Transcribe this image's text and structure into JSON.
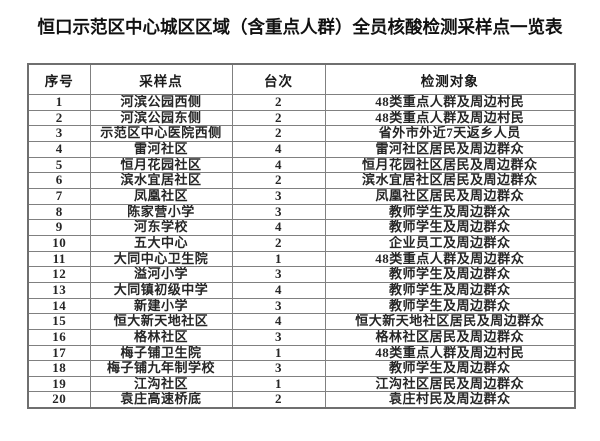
{
  "title": "恒口示范区中心城区区域（含重点人群）全员核酸检测采样点一览表",
  "table": {
    "columns": [
      "序号",
      "采样点",
      "台次",
      "检测对象"
    ],
    "rows": [
      [
        "1",
        "河滨公园西侧",
        "2",
        "48类重点人群及周边村民"
      ],
      [
        "2",
        "河滨公园东侧",
        "2",
        "48类重点人群及周边村民"
      ],
      [
        "3",
        "示范区中心医院西侧",
        "2",
        "省外市外近7天返乡人员"
      ],
      [
        "4",
        "雷河社区",
        "4",
        "雷河社区居民及周边群众"
      ],
      [
        "5",
        "恒月花园社区",
        "4",
        "恒月花园社区居民及周边群众"
      ],
      [
        "6",
        "滨水宜居社区",
        "2",
        "滨水宜居社区居民及周边群众"
      ],
      [
        "7",
        "凤凰社区",
        "3",
        "凤凰社区居民及周边群众"
      ],
      [
        "8",
        "陈家营小学",
        "3",
        "教师学生及周边群众"
      ],
      [
        "9",
        "河东学校",
        "4",
        "教师学生及周边群众"
      ],
      [
        "10",
        "五大中心",
        "2",
        "企业员工及周边群众"
      ],
      [
        "11",
        "大同中心卫生院",
        "1",
        "48类重点人群及周边群众"
      ],
      [
        "12",
        "溢河小学",
        "3",
        "教师学生及周边群众"
      ],
      [
        "13",
        "大同镇初级中学",
        "4",
        "教师学生及周边群众"
      ],
      [
        "14",
        "新建小学",
        "3",
        "教师学生及周边群众"
      ],
      [
        "15",
        "恒大新天地社区",
        "4",
        "恒大新天地社区居民及周边群众"
      ],
      [
        "16",
        "格林社区",
        "3",
        "格林社区居民及周边群众"
      ],
      [
        "17",
        "梅子铺卫生院",
        "1",
        "48类重点人群及周边村民"
      ],
      [
        "18",
        "梅子铺九年制学校",
        "3",
        "教师学生及周边群众"
      ],
      [
        "19",
        "江沟社区",
        "1",
        "江沟社区居民及周边群众"
      ],
      [
        "20",
        "袁庄高速桥底",
        "2",
        "袁庄村民及周边群众"
      ]
    ]
  },
  "colors": {
    "background": "#ffffff",
    "text": "#262626",
    "title_text": "#111111",
    "border": "#808080",
    "outer_border": "#6f6f6f"
  }
}
